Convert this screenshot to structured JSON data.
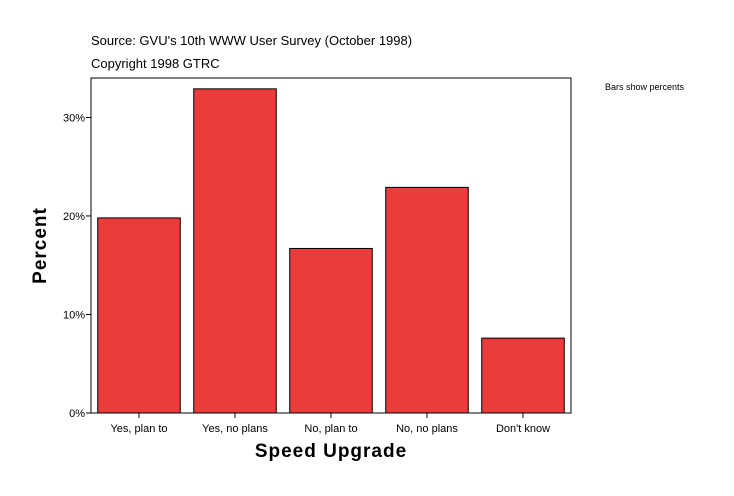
{
  "header": {
    "source": "Source: GVU's 10th WWW User Survey (October 1998)",
    "copyright": "Copyright 1998 GTRC"
  },
  "legend_note": "Bars show percents",
  "chart_data": {
    "type": "bar",
    "title": "",
    "xlabel": "Speed Upgrade",
    "ylabel": "Percent",
    "categories": [
      "Yes, plan to",
      "Yes, no plans",
      "No, plan to",
      "No, no plans",
      "Don't know"
    ],
    "values": [
      19.8,
      32.9,
      16.7,
      22.9,
      7.6
    ],
    "ylim": [
      0,
      34
    ],
    "yticks": [
      0,
      10,
      20,
      30
    ],
    "ytick_labels": [
      "0%",
      "10%",
      "20%",
      "30%"
    ],
    "bar_color": "#ec3b3b",
    "grid": false
  }
}
